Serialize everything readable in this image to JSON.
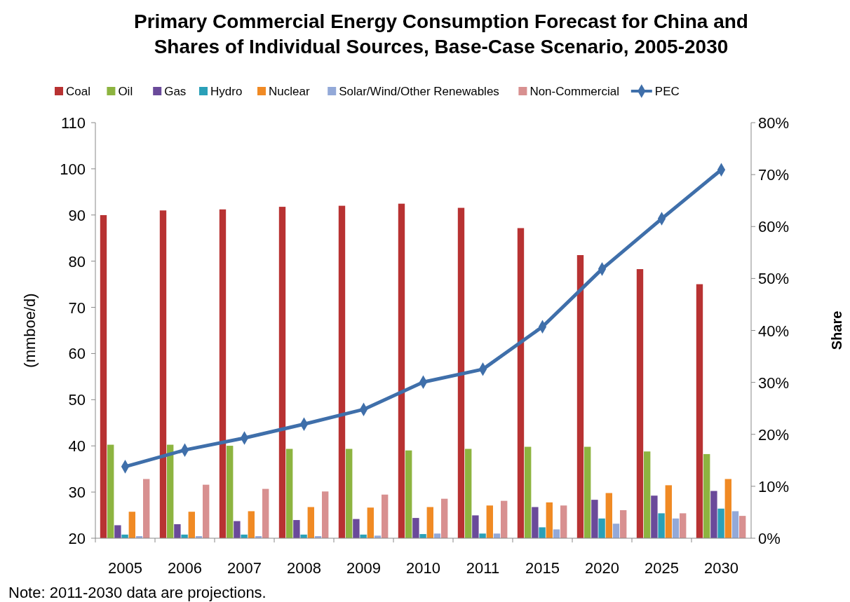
{
  "chart_data": {
    "type": "bar",
    "title": "Primary Commercial Energy Consumption Forecast for China and Shares of Individual Sources, Base-Case Scenario, 2005-2030",
    "ylabel": "(mmboe/d)",
    "y2label": "Share",
    "categories": [
      "2005",
      "2006",
      "2007",
      "2008",
      "2009",
      "2010",
      "2011",
      "2015",
      "2020",
      "2025",
      "2030"
    ],
    "ylim": [
      20,
      110
    ],
    "yticks": [
      20,
      30,
      40,
      50,
      60,
      70,
      80,
      90,
      100,
      110
    ],
    "y2lim": [
      0,
      80
    ],
    "y2ticks": [
      {
        "value": 0,
        "label": "0%"
      },
      {
        "value": 10,
        "label": "10%"
      },
      {
        "value": 20,
        "label": "20%"
      },
      {
        "value": 30,
        "label": "30%"
      },
      {
        "value": 40,
        "label": "40%"
      },
      {
        "value": 50,
        "label": "50%"
      },
      {
        "value": 60,
        "label": "60%"
      },
      {
        "value": 70,
        "label": "70%"
      },
      {
        "value": 80,
        "label": "80%"
      }
    ],
    "legend": "top",
    "grid": false,
    "series": [
      {
        "name": "Coal",
        "color": "#b83232",
        "axis": "y2",
        "values": [
          62.2,
          63.1,
          63.3,
          63.8,
          64.0,
          64.4,
          63.6,
          59.7,
          54.5,
          51.8,
          48.9
        ]
      },
      {
        "name": "Oil",
        "color": "#8db440",
        "axis": "y2",
        "values": [
          18.0,
          18.0,
          17.8,
          17.2,
          17.2,
          16.9,
          17.2,
          17.6,
          17.6,
          16.7,
          16.2
        ]
      },
      {
        "name": "Gas",
        "color": "#6a4a9a",
        "axis": "y2",
        "values": [
          2.5,
          2.7,
          3.3,
          3.5,
          3.7,
          3.9,
          4.4,
          6.0,
          7.4,
          8.2,
          9.1
        ]
      },
      {
        "name": "Hydro",
        "color": "#2aa0b8",
        "axis": "y2",
        "values": [
          0.7,
          0.7,
          0.7,
          0.7,
          0.7,
          0.8,
          0.9,
          2.1,
          3.8,
          4.8,
          5.7
        ]
      },
      {
        "name": "Nuclear",
        "color": "#f08a24",
        "axis": "y2",
        "values": [
          5.1,
          5.1,
          5.2,
          6.0,
          5.9,
          6.0,
          6.3,
          6.9,
          8.7,
          10.2,
          11.4
        ]
      },
      {
        "name": "Solar/Wind/Other Renewables",
        "color": "#93a9d8",
        "axis": "y2",
        "values": [
          0.4,
          0.4,
          0.4,
          0.4,
          0.5,
          0.9,
          0.9,
          1.7,
          2.8,
          3.8,
          5.2
        ]
      },
      {
        "name": "Non-Commercial",
        "color": "#d89090",
        "axis": "y2",
        "values": [
          11.4,
          10.3,
          9.5,
          9.0,
          8.4,
          7.6,
          7.2,
          6.3,
          5.4,
          4.8,
          4.3
        ]
      },
      {
        "name": "PEC",
        "type": "line",
        "color": "#3f6faa",
        "marker": "diamond",
        "values": [
          35.5,
          39.1,
          41.7,
          44.7,
          47.9,
          53.8,
          56.6,
          65.8,
          78.3,
          89.2,
          99.8
        ]
      }
    ],
    "annotations": [
      "Note: 2011-2030 data are projections."
    ]
  }
}
